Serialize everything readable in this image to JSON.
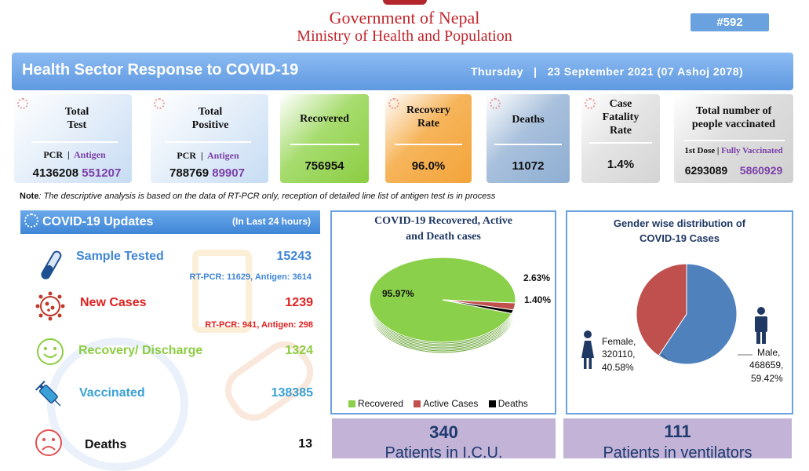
{
  "header": {
    "gov_line1": "Government of Nepal",
    "gov_line2": "Ministry of Health and Population",
    "badge": "#592"
  },
  "banner": {
    "title": "Health Sector Response to COVID-19",
    "date": "Thursday   |   23 September 2021 (07 Ashoj 2078)"
  },
  "cards": {
    "total_test": {
      "label1": "Total",
      "label2": "Test",
      "pcr_label": "PCR",
      "antigen_label": "Antigen",
      "pcr": "4136208",
      "antigen": "551207"
    },
    "total_positive": {
      "label1": "Total",
      "label2": "Positive",
      "pcr_label": "PCR",
      "antigen_label": "Antigen",
      "pcr": "788769",
      "antigen": "89907"
    },
    "recovered": {
      "label": "Recovered",
      "value": "756954"
    },
    "recovery_rate": {
      "label1": "Recovery",
      "label2": "Rate",
      "value": "96.0%"
    },
    "deaths": {
      "label": "Deaths",
      "value": "11072"
    },
    "cfr": {
      "label1": "Case",
      "label2": "Fatality",
      "label3": "Rate",
      "value": "1.4%"
    },
    "vaccinated": {
      "label1": "Total number of",
      "label2": "people vaccinated",
      "dose_label": "1st Dose",
      "full_label": "Fully Vaccinated",
      "dose": "6293089",
      "full": "5860929"
    }
  },
  "note": {
    "bold": "Note",
    "text": ": The descriptive analysis is based on the data of RT-PCR only, reception of detailed line list of antigen test is in process"
  },
  "updates": {
    "title": "COVID-19 Updates",
    "subtitle": "(In Last 24 hours)",
    "sample_label": "Sample Tested",
    "sample_value": "15243",
    "sample_note": "RT-PCR: 11629, Antigen: 3614",
    "cases_label": "New Cases",
    "cases_value": "1239",
    "cases_note": "RT-PCR: 941, Antigen: 298",
    "recovery_label": "Recovery/ Discharge",
    "recovery_value": "1324",
    "vacc_label": "Vaccinated",
    "vacc_value": "138385",
    "deaths_label": "Deaths",
    "deaths_value": "13"
  },
  "colors": {
    "blue": "#3f86d6",
    "red": "#e02020",
    "green": "#8ccd42",
    "teal": "#3aa1d6",
    "recovered_green": "#8bd04a",
    "active_red": "#c0504d",
    "deaths_black": "#000000",
    "male_blue": "#4f81bd",
    "female_red": "#c0504d"
  },
  "chart_data": [
    {
      "type": "pie",
      "title": "COVID-19 Recovered, Active and Death cases",
      "title_line1": "COVID-19 Recovered, Active",
      "title_line2": "and Death cases",
      "categories": [
        "Recovered",
        "Active Cases",
        "Deaths"
      ],
      "values": [
        95.97,
        2.63,
        1.4
      ],
      "labels": [
        "95.97%",
        "2.63%",
        "1.40%"
      ],
      "legend": "bottom"
    },
    {
      "type": "pie",
      "title": "Gender wise distribution of COVID-19 Cases",
      "title_line1": "Gender wise distribution of",
      "title_line2": "COVID-19 Cases",
      "categories": [
        "Male",
        "Female"
      ],
      "values": [
        468659,
        320110
      ],
      "percents": [
        59.42,
        40.58
      ],
      "female_text": [
        "Female,",
        "320110,",
        "40.58%"
      ],
      "male_text": [
        "Male,",
        "468659,",
        "59.42%"
      ]
    }
  ],
  "stats": {
    "icu_value": "340",
    "icu_label": "Patients in I.C.U.",
    "vent_value": "111",
    "vent_label": "Patients in ventilators"
  }
}
